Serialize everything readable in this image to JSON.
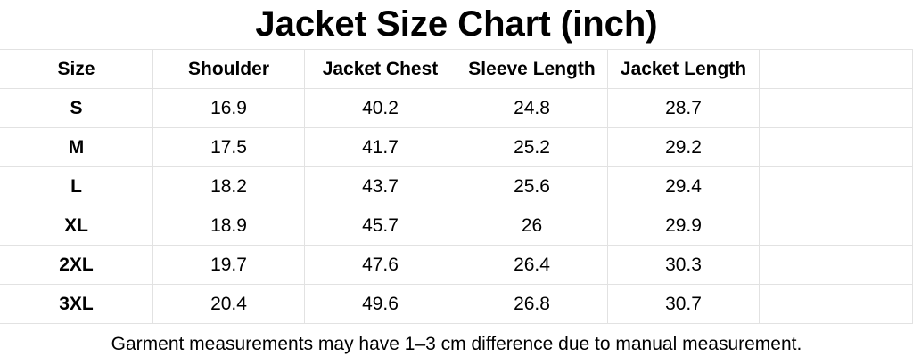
{
  "title": "Jacket Size Chart (inch)",
  "table": {
    "header": [
      "Size",
      "Shoulder",
      "Jacket Chest",
      "Sleeve Length",
      "Jacket Length"
    ],
    "rows": [
      [
        "S",
        16.9,
        40.2,
        24.8,
        28.7
      ],
      [
        "M",
        17.5,
        41.7,
        25.2,
        29.2
      ],
      [
        "L",
        18.2,
        43.7,
        25.6,
        29.4
      ],
      [
        "XL",
        18.9,
        45.7,
        26,
        29.9
      ],
      [
        "2XL",
        19.7,
        47.6,
        26.4,
        30.3
      ],
      [
        "3XL",
        20.4,
        49.6,
        26.8,
        30.7
      ]
    ]
  },
  "footnote": "Garment measurements may have 1–3 cm difference due to manual measurement."
}
